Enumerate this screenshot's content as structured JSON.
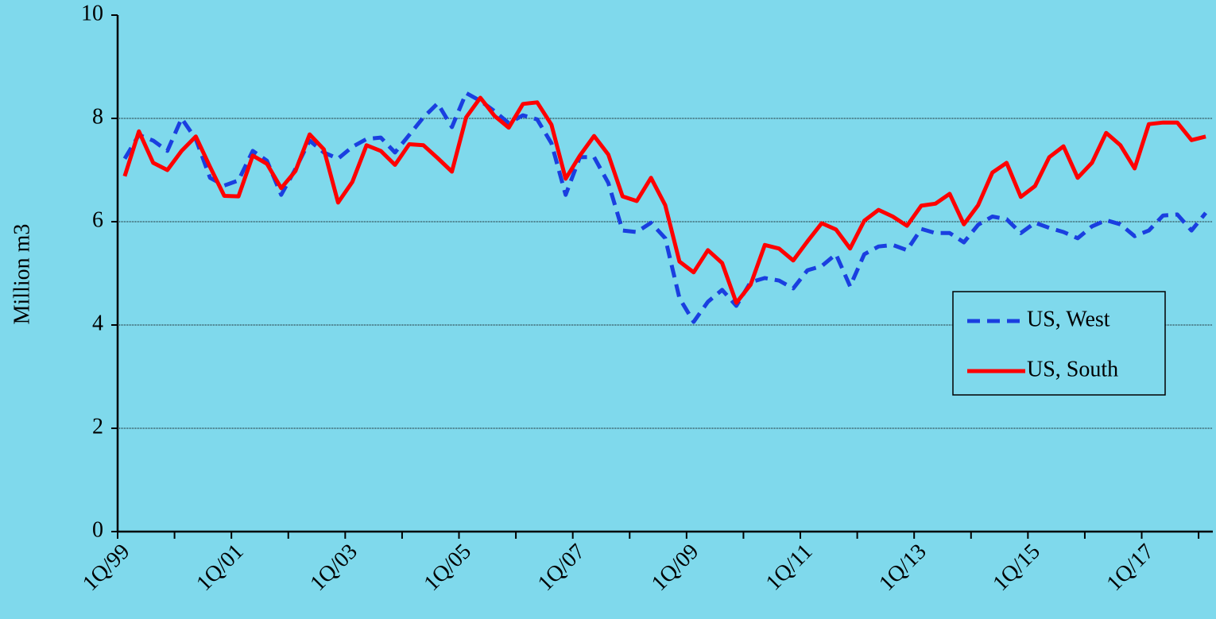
{
  "chart_data": {
    "type": "line",
    "y_label": "Million m3",
    "categories": [
      "1Q/99",
      null,
      null,
      null,
      null,
      null,
      null,
      null,
      "1Q/01",
      null,
      null,
      null,
      null,
      null,
      null,
      null,
      "1Q/03",
      null,
      null,
      null,
      null,
      null,
      null,
      null,
      "1Q/05",
      null,
      null,
      null,
      null,
      null,
      null,
      null,
      "1Q/07",
      null,
      null,
      null,
      null,
      null,
      null,
      null,
      "1Q/09",
      null,
      null,
      null,
      null,
      null,
      null,
      null,
      "1Q/11",
      null,
      null,
      null,
      null,
      null,
      null,
      null,
      "1Q/13",
      null,
      null,
      null,
      null,
      null,
      null,
      null,
      "1Q/15",
      null,
      null,
      null,
      null,
      null,
      null,
      null,
      "1Q/17",
      null,
      null,
      null,
      null
    ],
    "series": [
      {
        "name": "US, West",
        "color": "#1a3fe0",
        "style": "dashed",
        "values": [
          7.22,
          7.68,
          7.57,
          7.37,
          8.0,
          7.6,
          6.85,
          6.7,
          6.8,
          7.37,
          7.18,
          6.52,
          7.02,
          7.57,
          7.34,
          7.22,
          7.45,
          7.6,
          7.63,
          7.34,
          7.68,
          8.02,
          8.29,
          7.83,
          8.49,
          8.34,
          8.14,
          7.91,
          8.06,
          7.98,
          7.52,
          6.52,
          7.25,
          7.25,
          6.75,
          5.83,
          5.8,
          5.98,
          5.68,
          4.52,
          4.06,
          4.45,
          4.68,
          4.37,
          4.83,
          4.91,
          4.86,
          4.71,
          5.06,
          5.14,
          5.37,
          4.75,
          5.37,
          5.52,
          5.55,
          5.45,
          5.86,
          5.78,
          5.78,
          5.6,
          5.94,
          6.1,
          6.05,
          5.78,
          5.98,
          5.88,
          5.8,
          5.68,
          5.91,
          6.03,
          5.95,
          5.72,
          5.83,
          6.12,
          6.14,
          5.83,
          6.17
        ]
      },
      {
        "name": "US, South",
        "color": "#ff0000",
        "style": "solid",
        "values": [
          6.88,
          7.75,
          7.14,
          7.0,
          7.37,
          7.65,
          7.06,
          6.5,
          6.49,
          7.28,
          7.12,
          6.65,
          6.98,
          7.69,
          7.4,
          6.37,
          6.77,
          7.48,
          7.37,
          7.1,
          7.5,
          7.48,
          7.23,
          6.97,
          8.02,
          8.4,
          8.05,
          7.82,
          8.28,
          8.31,
          7.88,
          6.83,
          7.28,
          7.66,
          7.3,
          6.49,
          6.4,
          6.85,
          6.32,
          5.23,
          5.02,
          5.45,
          5.2,
          4.43,
          4.78,
          5.55,
          5.48,
          5.25,
          5.62,
          5.97,
          5.85,
          5.48,
          6.02,
          6.23,
          6.1,
          5.92,
          6.31,
          6.35,
          6.54,
          5.95,
          6.32,
          6.95,
          7.14,
          6.48,
          6.69,
          7.25,
          7.46,
          6.85,
          7.14,
          7.72,
          7.48,
          7.03,
          7.89,
          7.92,
          7.92,
          7.58,
          7.65
        ]
      }
    ],
    "ylim": [
      0,
      10
    ],
    "yticks": [
      0,
      2,
      4,
      6,
      8,
      10
    ],
    "grid": true,
    "legend": "right"
  }
}
